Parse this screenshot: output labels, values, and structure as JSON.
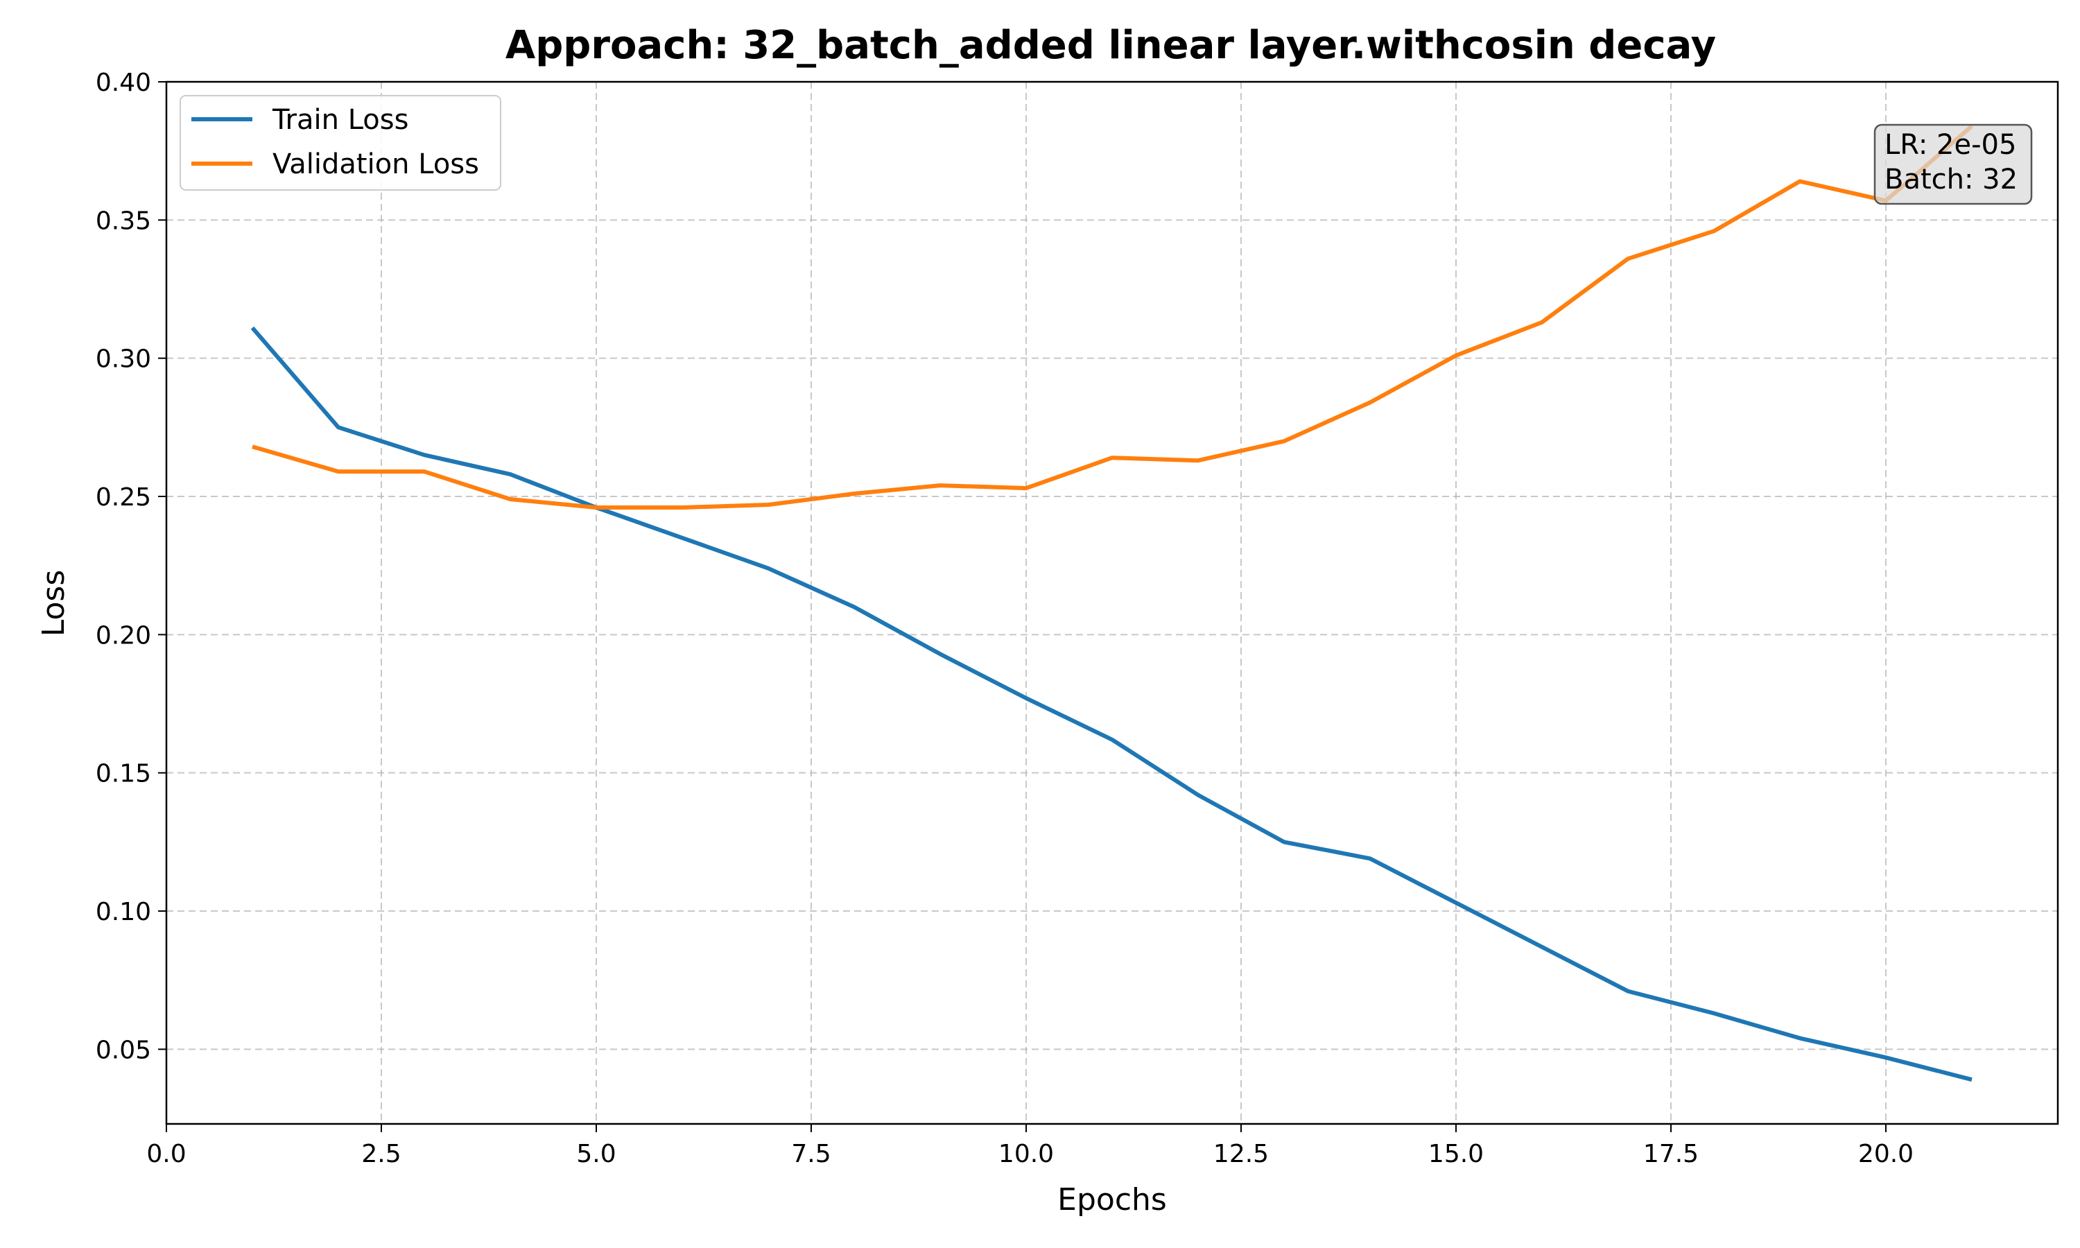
{
  "chart_data": {
    "type": "line",
    "title": "Approach: 32_batch_added linear layer.withcosin decay",
    "xlabel": "Epochs",
    "ylabel": "Loss",
    "xlim": [
      0,
      22
    ],
    "ylim": [
      0.023,
      0.4
    ],
    "x_ticks": [
      0,
      2.5,
      5,
      7.5,
      10,
      12.5,
      15,
      17.5,
      20
    ],
    "x_tick_labels": [
      "0.0",
      "2.5",
      "5.0",
      "7.5",
      "10.0",
      "12.5",
      "15.0",
      "17.5",
      "20.0"
    ],
    "y_ticks": [
      0.05,
      0.1,
      0.15,
      0.2,
      0.25,
      0.3,
      0.35,
      0.4
    ],
    "y_tick_labels": [
      "0.05",
      "0.10",
      "0.15",
      "0.20",
      "0.25",
      "0.30",
      "0.35",
      "0.40"
    ],
    "grid": true,
    "legend_position": "top-left",
    "x": [
      1,
      2,
      3,
      4,
      5,
      6,
      7,
      8,
      9,
      10,
      11,
      12,
      13,
      14,
      15,
      16,
      17,
      18,
      19,
      20,
      21
    ],
    "series": [
      {
        "name": "Train Loss",
        "color": "#1f77b4",
        "values": [
          0.311,
          0.275,
          0.265,
          0.258,
          0.246,
          0.235,
          0.224,
          0.21,
          0.193,
          0.177,
          0.162,
          0.142,
          0.125,
          0.119,
          0.103,
          0.087,
          0.071,
          0.063,
          0.054,
          0.047,
          0.039
        ]
      },
      {
        "name": "Validation Loss",
        "color": "#ff7f0e",
        "values": [
          0.268,
          0.259,
          0.259,
          0.249,
          0.246,
          0.246,
          0.247,
          0.251,
          0.254,
          0.253,
          0.264,
          0.263,
          0.27,
          0.284,
          0.301,
          0.313,
          0.336,
          0.346,
          0.364,
          0.357,
          0.384
        ]
      }
    ],
    "annotation": {
      "line1": "LR: 2e-05",
      "line2": "Batch: 32",
      "position": "top-right"
    }
  }
}
